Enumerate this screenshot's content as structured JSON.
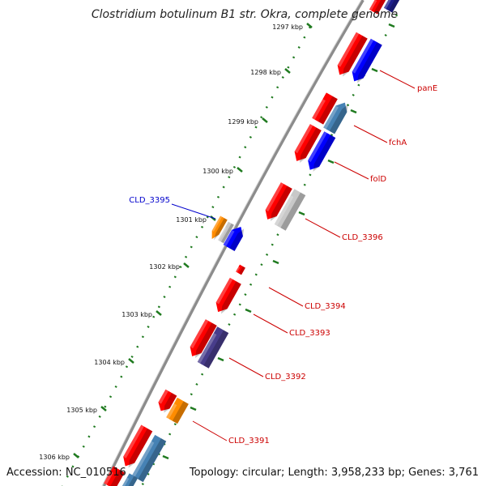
{
  "title": "Clostridium botulinum B1 str. Okra, complete genome",
  "accession": "Accession: NC_010516",
  "summary": "Topology: circular; Length: 3,958,233 bp; Genes: 3,761",
  "colors": {
    "backbone": "#8c8c8c",
    "ticks": "#1f7a1f",
    "label_red": "#cc0000",
    "label_blue": "#0000cc",
    "gene_red": "#ff0000",
    "gene_blue": "#0000ff",
    "gene_steel": "#4682b4",
    "gene_gray": "#c8c8c8",
    "gene_orange": "#ff8c00",
    "gene_navy": "#1e1e8c",
    "gene_slate": "#483d8b"
  },
  "ticks": [
    {
      "label": "1297 kbp"
    },
    {
      "label": "1298 kbp"
    },
    {
      "label": "1299 kbp"
    },
    {
      "label": "1300 kbp"
    },
    {
      "label": "1301 kbp"
    },
    {
      "label": "1302 kbp"
    },
    {
      "label": "1303 kbp"
    },
    {
      "label": "1304 kbp"
    },
    {
      "label": "1305 kbp"
    },
    {
      "label": "1306 kbp"
    }
  ],
  "gene_labels": [
    {
      "name": "panE",
      "color": "#cc0000"
    },
    {
      "name": "fchA",
      "color": "#cc0000"
    },
    {
      "name": "folD",
      "color": "#cc0000"
    },
    {
      "name": "CLD_3396",
      "color": "#cc0000"
    },
    {
      "name": "CLD_3395",
      "color": "#0000cc"
    },
    {
      "name": "CLD_3394",
      "color": "#cc0000"
    },
    {
      "name": "CLD_3393",
      "color": "#cc0000"
    },
    {
      "name": "CLD_3392",
      "color": "#cc0000"
    },
    {
      "name": "CLD_3391",
      "color": "#cc0000"
    }
  ]
}
